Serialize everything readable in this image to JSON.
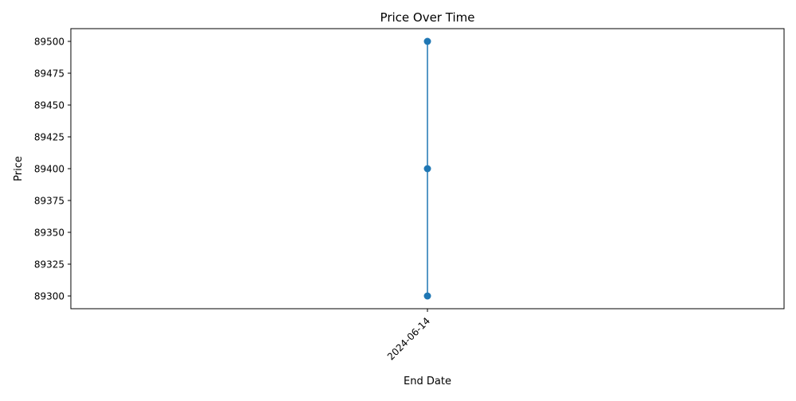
{
  "chart_data": {
    "type": "line",
    "title": "Price Over Time",
    "xlabel": "End Date",
    "ylabel": "Price",
    "x_ticks": [
      "2024-06-14"
    ],
    "y_ticks": [
      89300,
      89325,
      89350,
      89375,
      89400,
      89425,
      89450,
      89475,
      89500
    ],
    "ylim": [
      89290,
      89510
    ],
    "grid": false,
    "series": [
      {
        "color": "#1f77b4",
        "marker": "circle",
        "points": [
          {
            "x": "2024-06-14",
            "y": 89500
          },
          {
            "x": "2024-06-14",
            "y": 89400
          },
          {
            "x": "2024-06-14",
            "y": 89300
          }
        ]
      }
    ]
  }
}
